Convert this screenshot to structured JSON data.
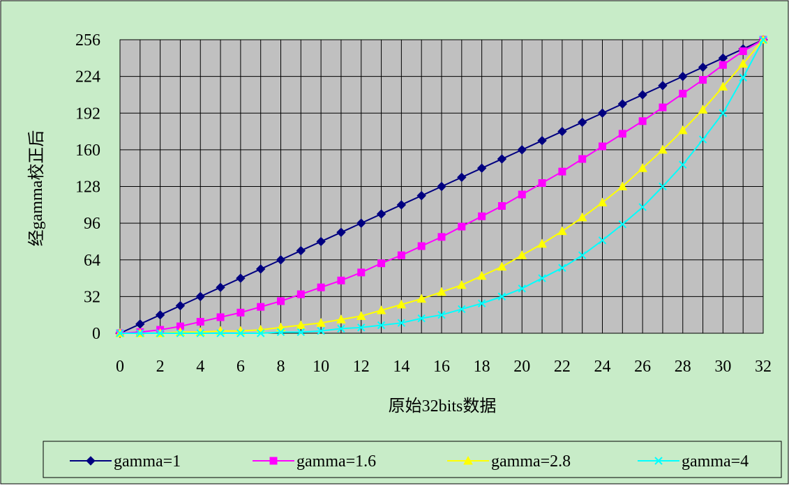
{
  "chart_data": {
    "type": "line",
    "xlabel": "原始32bits数据",
    "ylabel": "经gamma校正后",
    "xlim": [
      0,
      32
    ],
    "ylim": [
      0,
      256
    ],
    "x_ticks": [
      "0",
      "2",
      "4",
      "6",
      "8",
      "10",
      "12",
      "14",
      "16",
      "18",
      "20",
      "22",
      "24",
      "26",
      "28",
      "30",
      "32"
    ],
    "y_ticks": [
      "0",
      "32",
      "64",
      "96",
      "128",
      "160",
      "192",
      "224",
      "256"
    ],
    "grid": true,
    "legend_position": "bottom",
    "plot_background": "#c0c0c0",
    "chart_background": "#c8ecc8",
    "x": [
      0,
      1,
      2,
      3,
      4,
      5,
      6,
      7,
      8,
      9,
      10,
      11,
      12,
      13,
      14,
      15,
      16,
      17,
      18,
      19,
      20,
      21,
      22,
      23,
      24,
      25,
      26,
      27,
      28,
      29,
      30,
      31,
      32
    ],
    "series": [
      {
        "name": "gamma=1",
        "color": "#000080",
        "marker": "diamond",
        "values": [
          0,
          8,
          16,
          24,
          32,
          40,
          48,
          56,
          64,
          72,
          80,
          88,
          96,
          104,
          112,
          120,
          128,
          136,
          144,
          152,
          160,
          168,
          176,
          184,
          192,
          200,
          208,
          216,
          224,
          232,
          240,
          248,
          256
        ]
      },
      {
        "name": "gamma=1.6",
        "color": "#ff00ff",
        "marker": "square",
        "values": [
          0,
          1,
          3,
          6,
          10,
          14,
          18,
          23,
          28,
          34,
          40,
          46,
          53,
          61,
          68,
          76,
          84,
          93,
          102,
          111,
          121,
          131,
          141,
          152,
          163,
          174,
          185,
          197,
          209,
          221,
          234,
          246,
          256
        ]
      },
      {
        "name": "gamma=2.8",
        "color": "#ffff00",
        "marker": "triangle",
        "values": [
          0,
          0,
          0,
          1,
          1,
          2,
          2,
          3,
          5,
          7,
          9,
          12,
          15,
          20,
          25,
          30,
          36,
          42,
          50,
          58,
          68,
          78,
          89,
          101,
          114,
          128,
          144,
          160,
          177,
          195,
          215,
          235,
          256
        ]
      },
      {
        "name": "gamma=4",
        "color": "#00ffff",
        "marker": "x",
        "values": [
          0,
          0,
          0,
          0,
          0,
          0,
          0,
          0,
          1,
          1,
          2,
          4,
          5,
          7,
          9,
          13,
          16,
          21,
          26,
          32,
          39,
          48,
          57,
          68,
          81,
          95,
          110,
          128,
          147,
          169,
          192,
          223,
          256
        ]
      }
    ]
  }
}
